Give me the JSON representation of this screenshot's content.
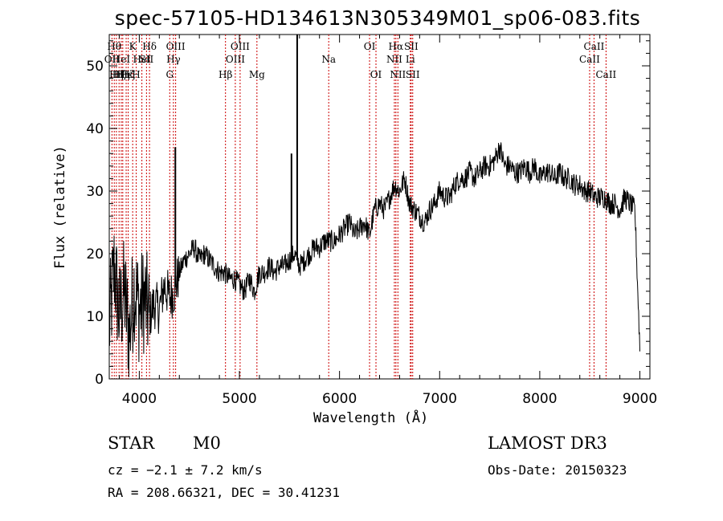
{
  "chart_data": {
    "type": "line",
    "title": "spec-57105-HD134613N305349M01_sp06-083.fits",
    "xlabel": "Wavelength (Å)",
    "ylabel": "Flux (relative)",
    "xlim": [
      3700,
      9100
    ],
    "ylim": [
      0,
      55
    ],
    "xticks": [
      4000,
      5000,
      6000,
      7000,
      8000,
      9000
    ],
    "yticks": [
      0,
      10,
      20,
      30,
      40,
      50
    ],
    "series": [
      {
        "name": "flux",
        "x": [
          3700,
          3750,
          3800,
          3850,
          3900,
          3950,
          4000,
          4050,
          4100,
          4150,
          4200,
          4250,
          4300,
          4350,
          4400,
          4450,
          4500,
          4550,
          4600,
          4650,
          4700,
          4750,
          4800,
          4850,
          4900,
          4950,
          5000,
          5050,
          5100,
          5150,
          5200,
          5250,
          5300,
          5350,
          5400,
          5450,
          5500,
          5550,
          5600,
          5650,
          5700,
          5750,
          5800,
          5850,
          5900,
          5950,
          6000,
          6050,
          6100,
          6150,
          6200,
          6250,
          6300,
          6350,
          6400,
          6450,
          6500,
          6550,
          6600,
          6650,
          6700,
          6750,
          6800,
          6850,
          6900,
          6950,
          7000,
          7050,
          7100,
          7150,
          7200,
          7250,
          7300,
          7350,
          7400,
          7450,
          7500,
          7550,
          7600,
          7650,
          7700,
          7750,
          7800,
          7850,
          7900,
          7950,
          8000,
          8050,
          8100,
          8150,
          8200,
          8250,
          8300,
          8350,
          8400,
          8450,
          8500,
          8550,
          8600,
          8650,
          8700,
          8750,
          8800,
          8850,
          8900,
          8950,
          9000
        ],
        "y": [
          8,
          18,
          10,
          14,
          7,
          15,
          11,
          13,
          10,
          12,
          11,
          15,
          13,
          14,
          17,
          19,
          20,
          21,
          19,
          20,
          19,
          18,
          17,
          17,
          16,
          16,
          15,
          14,
          16,
          14,
          17,
          17,
          18,
          17,
          18,
          18,
          19,
          20,
          18,
          19,
          20,
          21,
          21,
          22,
          22,
          22,
          23,
          24,
          25,
          23,
          24,
          25,
          23,
          27,
          28,
          27,
          29,
          31,
          30,
          32,
          28,
          27,
          26,
          25,
          27,
          28,
          30,
          29,
          29,
          31,
          32,
          32,
          33,
          32,
          33,
          34,
          34,
          35,
          37,
          34,
          34,
          33,
          33,
          34,
          33,
          34,
          32,
          33,
          33,
          32,
          33,
          32,
          32,
          31,
          31,
          30,
          30,
          29,
          29,
          29,
          28,
          28,
          27,
          29,
          28,
          27,
          5
        ]
      }
    ],
    "spikes": [
      {
        "x": 4360,
        "y": 37
      },
      {
        "x": 5520,
        "y": 36
      },
      {
        "x": 5577,
        "y": 60
      }
    ],
    "line_markers": [
      {
        "x": 3727,
        "label": "OII",
        "row": 2
      },
      {
        "x": 3750,
        "label": "Hθ",
        "row": 1
      },
      {
        "x": 3771,
        "label": "Hη",
        "row": 3
      },
      {
        "x": 3798,
        "label": "Hζ",
        "row": 3
      },
      {
        "x": 3820,
        "label": "HeI",
        "row": 2
      },
      {
        "x": 3835,
        "label": "Hη",
        "row": 3
      },
      {
        "x": 3869,
        "label": "Hε",
        "row": 3
      },
      {
        "x": 3889,
        "label": "Hζ",
        "row": 3
      },
      {
        "x": 3934,
        "label": "K",
        "row": 1
      },
      {
        "x": 3969,
        "label": "H",
        "row": 3
      },
      {
        "x": 4026,
        "label": "HeI",
        "row": 2
      },
      {
        "x": 4072,
        "label": "SII",
        "row": 2
      },
      {
        "x": 4102,
        "label": "Hδ",
        "row": 1
      },
      {
        "x": 4304,
        "label": "G",
        "row": 3
      },
      {
        "x": 4341,
        "label": "Hγ",
        "row": 2
      },
      {
        "x": 4363,
        "label": "OIII",
        "row": 1
      },
      {
        "x": 4861,
        "label": "Hβ",
        "row": 3
      },
      {
        "x": 4959,
        "label": "OIII",
        "row": 2
      },
      {
        "x": 5007,
        "label": "OIII",
        "row": 1
      },
      {
        "x": 5175,
        "label": "Mg",
        "row": 3
      },
      {
        "x": 5892,
        "label": "Na",
        "row": 2
      },
      {
        "x": 6300,
        "label": "OI",
        "row": 1
      },
      {
        "x": 6364,
        "label": "OI",
        "row": 3
      },
      {
        "x": 6548,
        "label": "NII",
        "row": 2
      },
      {
        "x": 6563,
        "label": "Hα",
        "row": 1
      },
      {
        "x": 6583,
        "label": "NII",
        "row": 3
      },
      {
        "x": 6707,
        "label": "Li",
        "row": 2
      },
      {
        "x": 6716,
        "label": "SII",
        "row": 1
      },
      {
        "x": 6731,
        "label": "SII",
        "row": 3
      },
      {
        "x": 8498,
        "label": "CaII",
        "row": 2
      },
      {
        "x": 8542,
        "label": "CaII",
        "row": 1
      },
      {
        "x": 8662,
        "label": "CaII",
        "row": 3
      }
    ]
  },
  "info": {
    "class_label": "STAR",
    "subclass": "M0",
    "cz": "cz = −2.1 ± 7.2 km/s",
    "coords": "RA = 208.66321, DEC =  30.41231",
    "survey": "LAMOST DR3",
    "obs_date": "Obs-Date: 20150323"
  },
  "colors": {
    "line_marker": "#cc0000",
    "spectrum": "#000000",
    "axes": "#000000"
  }
}
